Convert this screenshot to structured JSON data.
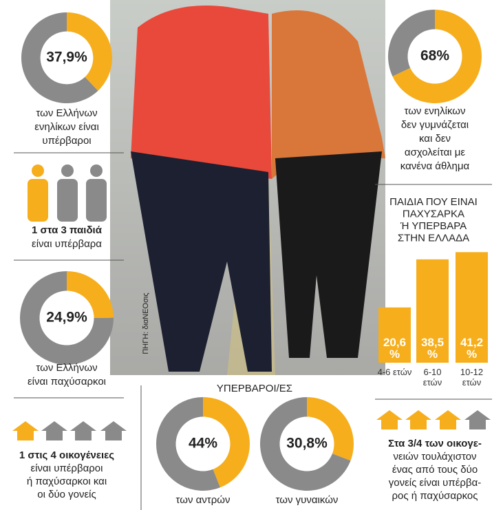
{
  "source": "ΠΗΓΗ: διαΝΕΟσις",
  "donuts": [
    {
      "value": 37.9,
      "label": "37,9%",
      "caption": [
        "των Ελλήνων",
        "ενηλίκων είναι",
        "υπέρβαροι"
      ]
    },
    {
      "value": 68,
      "label": "68%",
      "caption": [
        "των ενηλίκων",
        "δεν γυμνάζεται",
        "και δεν",
        "ασχολείται με",
        "κανένα άθλημα"
      ]
    },
    {
      "value": 24.9,
      "label": "24,9%",
      "caption": [
        "των Ελλήνων",
        "είναι παχύσαρκοι"
      ]
    },
    {
      "value": 44,
      "label": "44%",
      "caption": [
        "των αντρών"
      ]
    },
    {
      "value": 30.8,
      "label": "30,8%",
      "caption": [
        "των γυναικών"
      ]
    }
  ],
  "children": {
    "lines": [
      "1 στα 3 παιδιά",
      "είναι υπέρβαρα"
    ]
  },
  "families_left": {
    "lines": [
      "1 στις 4 οικογένειες",
      "είναι υπέρβαροι",
      "ή παχύσαρκοι και",
      "οι δύο γονείς"
    ]
  },
  "families_right": {
    "lines": [
      "Στα 3/4 των οικογε-",
      "νειών τουλάχιστον",
      "ένας από τους δύο",
      "γονείς είναι υπέρβα-",
      "ρος ή παχύσαρκος"
    ]
  },
  "overweight_heading": "ΥΠΕΡΒΑΡΟΙ/ΕΣ",
  "chart_data": {
    "type": "bar",
    "title": [
      "ΠΑΙΔΙΑ ΠΟΥ ΕΙΝΑΙ",
      "ΠΑΧΥΣΑΡΚΑ",
      "Ή ΥΠΕΡΒΑΡΑ",
      "ΣΤΗΝ ΕΛΛΑΔΑ"
    ],
    "categories": [
      "4-6 ετών",
      "6-10 ετών",
      "10-12 ετών"
    ],
    "values": [
      20.6,
      38.5,
      41.2
    ],
    "value_labels": [
      "20,6 %",
      "38,5 %",
      "41,2 %"
    ],
    "color": "#f6ae1c"
  }
}
